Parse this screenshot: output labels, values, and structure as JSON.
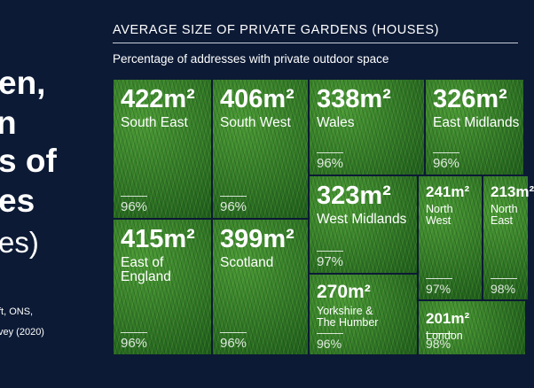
{
  "chart_data": {
    "type": "treemap",
    "title": "AVERAGE SIZE OF PRIVATE GARDENS (HOUSES)",
    "subtitle": "Percentage of addresses with private outdoor space",
    "categories": [
      "South East",
      "South West",
      "Wales",
      "East Midlands",
      "East of\nEngland",
      "Scotland",
      "West Midlands",
      "Yorkshire &\nThe Humber",
      "North\nWest",
      "North\nEast",
      "London"
    ],
    "values": [
      422,
      406,
      338,
      326,
      415,
      399,
      323,
      270,
      241,
      213,
      201
    ],
    "value_labels": [
      "422m²",
      "406m²",
      "338m²",
      "326m²",
      "415m²",
      "399m²",
      "323m²",
      "270m²",
      "241m²",
      "213m²",
      "201m²"
    ],
    "outdoor_space": [
      96,
      96,
      96,
      96,
      96,
      96,
      97,
      96,
      97,
      98,
      98
    ],
    "outdoor_space_labels": [
      "96%",
      "96%",
      "96%",
      "96%",
      "96%",
      "96%",
      "97%",
      "96%",
      "97%",
      "98%",
      "98%"
    ]
  },
  "sidebar": {
    "heading_lines": [
      "en,",
      "n",
      "s of",
      "es"
    ],
    "subheading": "es)",
    "source_lines": [
      "ft, ONS,",
      "vey (2020)"
    ]
  }
}
